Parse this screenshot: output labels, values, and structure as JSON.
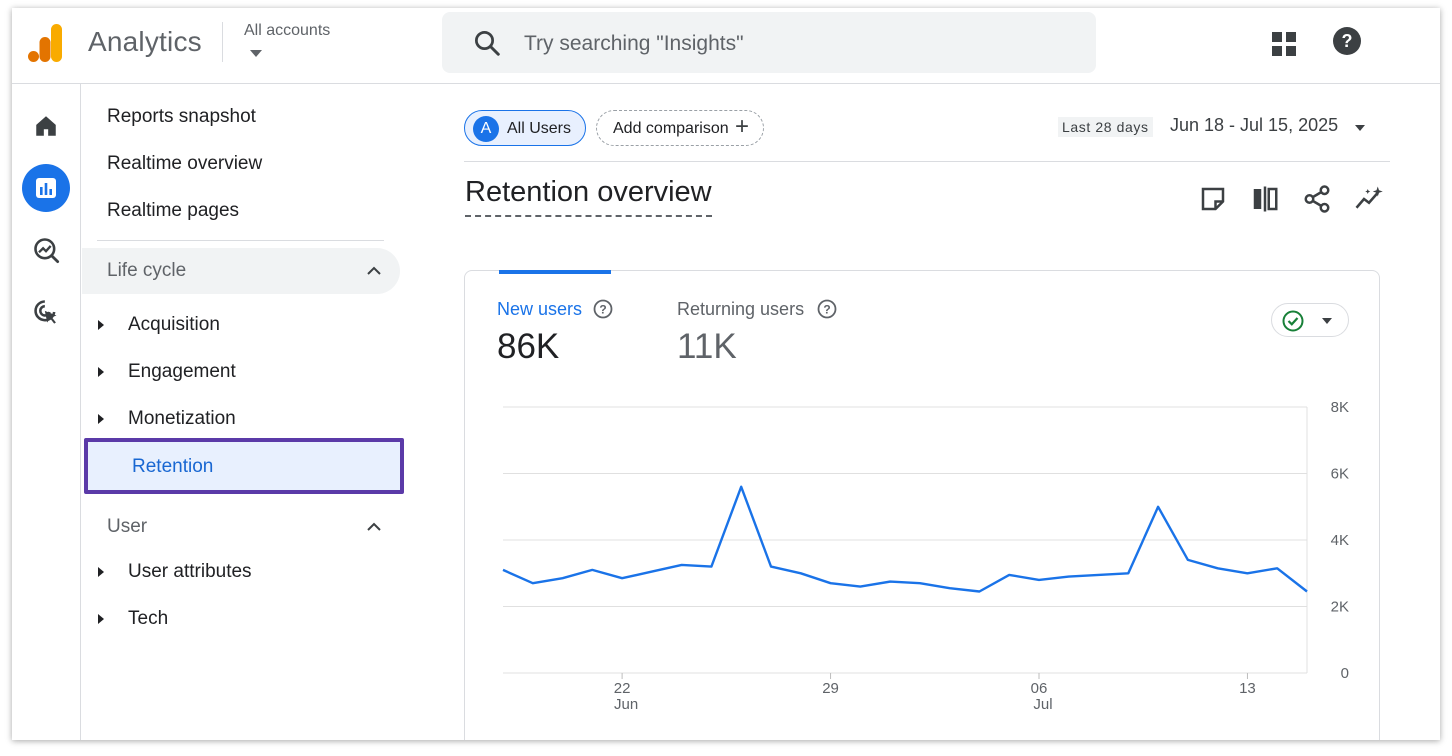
{
  "app": {
    "title": "Analytics",
    "account_selector": "All accounts",
    "logo_colors": [
      "#f9ab00",
      "#e37400"
    ]
  },
  "search": {
    "placeholder": "Try searching \"Insights\""
  },
  "header_icons": [
    "apps-grid-icon",
    "help-icon"
  ],
  "rail": {
    "items": [
      {
        "name": "home",
        "icon": "home-icon",
        "active": false
      },
      {
        "name": "reports",
        "icon": "bar-chart-icon",
        "active": true
      },
      {
        "name": "explore",
        "icon": "explore-trend-icon",
        "active": false
      },
      {
        "name": "advertising",
        "icon": "target-cursor-icon",
        "active": false
      }
    ]
  },
  "sidenav": {
    "top_links": [
      "Reports snapshot",
      "Realtime overview",
      "Realtime pages"
    ],
    "sections": [
      {
        "label": "Life cycle",
        "expanded": true,
        "items": [
          {
            "label": "Acquisition",
            "selected": false
          },
          {
            "label": "Engagement",
            "selected": false
          },
          {
            "label": "Monetization",
            "selected": false
          },
          {
            "label": "Retention",
            "selected": true
          }
        ]
      },
      {
        "label": "User",
        "expanded": true,
        "items": [
          {
            "label": "User attributes",
            "selected": false
          },
          {
            "label": "Tech",
            "selected": false
          }
        ]
      }
    ]
  },
  "toolbar": {
    "segment_chip": {
      "avatar": "A",
      "label": "All Users"
    },
    "add_comparison": "Add comparison",
    "date_range_label": "Last 28 days",
    "date_range": "Jun 18 - Jul 15, 2025"
  },
  "page": {
    "title": "Retention overview",
    "tool_icons": [
      "annotation-icon",
      "compare-icon",
      "share-icon",
      "insights-icon"
    ]
  },
  "card": {
    "metrics": [
      {
        "label": "New users",
        "value": "86K",
        "active": true
      },
      {
        "label": "Returning users",
        "value": "11K",
        "active": false
      }
    ],
    "status_icon": "check-circle-icon",
    "status_color": "#188038",
    "accent_color": "#1a73e8"
  },
  "chart_data": {
    "type": "line",
    "title": "",
    "xlabel": "",
    "ylabel": "",
    "ylim": [
      0,
      8000
    ],
    "y_ticks": [
      "0",
      "2K",
      "4K",
      "6K",
      "8K"
    ],
    "x_ticks": [
      {
        "label": "22",
        "sub": "Jun",
        "index": 4
      },
      {
        "label": "29",
        "sub": "",
        "index": 11
      },
      {
        "label": "06",
        "sub": "Jul",
        "index": 18
      },
      {
        "label": "13",
        "sub": "",
        "index": 25
      }
    ],
    "x": [
      "Jun 18",
      "Jun 19",
      "Jun 20",
      "Jun 21",
      "Jun 22",
      "Jun 23",
      "Jun 24",
      "Jun 25",
      "Jun 26",
      "Jun 27",
      "Jun 28",
      "Jun 29",
      "Jun 30",
      "Jul 1",
      "Jul 2",
      "Jul 3",
      "Jul 4",
      "Jul 5",
      "Jul 6",
      "Jul 7",
      "Jul 8",
      "Jul 9",
      "Jul 10",
      "Jul 11",
      "Jul 12",
      "Jul 13",
      "Jul 14",
      "Jul 15"
    ],
    "series": [
      {
        "name": "New users",
        "color": "#1a73e8",
        "values": [
          3100,
          2700,
          2850,
          3100,
          2850,
          3050,
          3250,
          3200,
          5600,
          3200,
          3000,
          2700,
          2600,
          2750,
          2700,
          2550,
          2450,
          2950,
          2800,
          2900,
          2950,
          3000,
          5000,
          3400,
          3150,
          3000,
          3150,
          2450
        ]
      }
    ],
    "grid": true,
    "legend": "none"
  }
}
